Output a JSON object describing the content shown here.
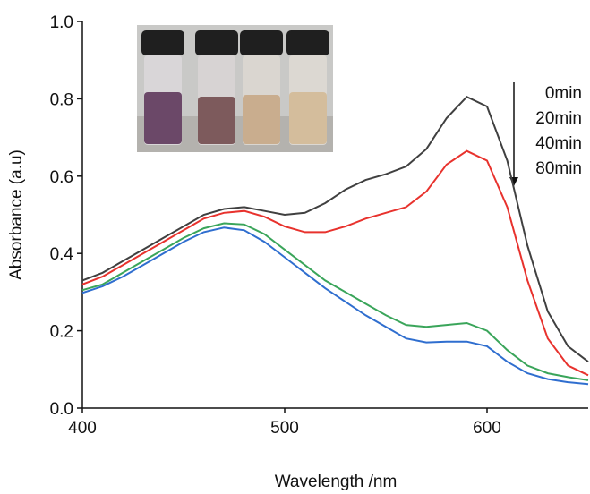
{
  "chart_data": {
    "type": "line",
    "x_label": "Wavelength /nm",
    "y_label": "Absorbance (a.u)",
    "x": [
      400,
      410,
      420,
      430,
      440,
      450,
      460,
      470,
      480,
      490,
      500,
      510,
      520,
      530,
      540,
      550,
      560,
      570,
      580,
      590,
      600,
      610,
      620,
      630,
      640,
      650
    ],
    "series": [
      {
        "name": "0min",
        "color": "#404040",
        "values": [
          0.33,
          0.35,
          0.38,
          0.41,
          0.44,
          0.47,
          0.5,
          0.515,
          0.52,
          0.51,
          0.5,
          0.505,
          0.53,
          0.565,
          0.59,
          0.605,
          0.625,
          0.67,
          0.75,
          0.805,
          0.78,
          0.64,
          0.42,
          0.25,
          0.16,
          0.12
        ]
      },
      {
        "name": "20min",
        "color": "#e8322d",
        "values": [
          0.32,
          0.34,
          0.37,
          0.4,
          0.43,
          0.46,
          0.49,
          0.505,
          0.51,
          0.495,
          0.47,
          0.455,
          0.455,
          0.47,
          0.49,
          0.505,
          0.52,
          0.56,
          0.63,
          0.665,
          0.64,
          0.52,
          0.33,
          0.18,
          0.11,
          0.085
        ]
      },
      {
        "name": "40min",
        "color": "#3aa55a",
        "values": [
          0.305,
          0.32,
          0.35,
          0.38,
          0.41,
          0.44,
          0.465,
          0.478,
          0.475,
          0.45,
          0.41,
          0.37,
          0.33,
          0.3,
          0.27,
          0.24,
          0.215,
          0.21,
          0.215,
          0.22,
          0.2,
          0.15,
          0.11,
          0.09,
          0.08,
          0.072
        ]
      },
      {
        "name": "80min",
        "color": "#2f6ecf",
        "values": [
          0.298,
          0.315,
          0.34,
          0.37,
          0.4,
          0.43,
          0.455,
          0.467,
          0.46,
          0.43,
          0.39,
          0.35,
          0.31,
          0.275,
          0.24,
          0.21,
          0.18,
          0.17,
          0.172,
          0.172,
          0.16,
          0.12,
          0.09,
          0.075,
          0.067,
          0.062
        ]
      }
    ],
    "xlim": [
      400,
      650
    ],
    "ylim": [
      0,
      1
    ],
    "xticks": [
      400,
      500,
      600
    ],
    "yticks": [
      {
        "value": 0,
        "label": "0.0"
      },
      {
        "value": 0.2,
        "label": "0.2"
      },
      {
        "value": 0.4,
        "label": "0.4"
      },
      {
        "value": 0.6,
        "label": "0.6"
      },
      {
        "value": 0.8,
        "label": "0.8"
      },
      {
        "value": 1,
        "label": "1.0"
      }
    ]
  }
}
